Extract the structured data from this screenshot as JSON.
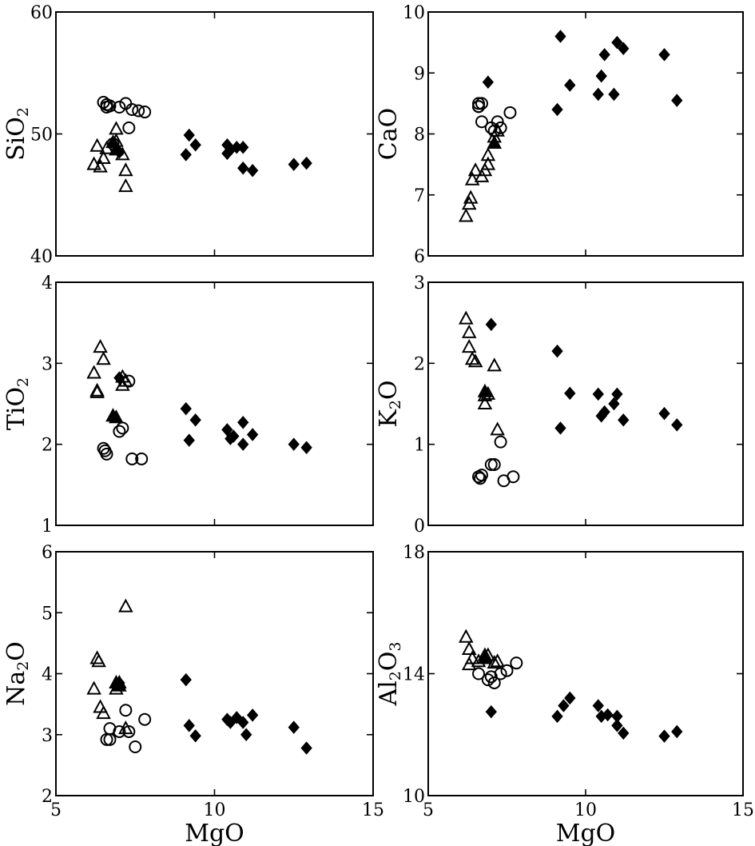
{
  "chart_data": [
    {
      "type": "scatter",
      "ylabel_parts": [
        [
          "Si",
          false
        ],
        [
          "O",
          false
        ],
        [
          "2",
          true
        ]
      ],
      "xlabel": "",
      "xlim": [
        5,
        15
      ],
      "ylim": [
        40,
        60
      ],
      "xticks": [
        5,
        10,
        15
      ],
      "xtick_labels": [
        "",
        "",
        ""
      ],
      "yticks": [
        40,
        50,
        60
      ],
      "ytick_labels": [
        "40",
        "50",
        "60"
      ],
      "series": [
        {
          "marker": "triangle-open",
          "points": [
            [
              6.2,
              47.5
            ],
            [
              6.3,
              49
            ],
            [
              6.4,
              47.3
            ],
            [
              6.5,
              48
            ],
            [
              6.6,
              48.8
            ],
            [
              6.9,
              50.4
            ],
            [
              7.1,
              48.3
            ],
            [
              7.2,
              47
            ],
            [
              7.2,
              45.7
            ],
            [
              6.9,
              49.4
            ]
          ]
        },
        {
          "marker": "triangle-filled",
          "points": [
            [
              6.8,
              49.3
            ],
            [
              6.9,
              48.7
            ]
          ]
        },
        {
          "marker": "circle-open",
          "points": [
            [
              6.5,
              52.6
            ],
            [
              6.6,
              52.4
            ],
            [
              6.6,
              52.2
            ],
            [
              6.7,
              52.3
            ],
            [
              7,
              52.2
            ],
            [
              7.2,
              52.5
            ],
            [
              7.3,
              50.5
            ],
            [
              7.4,
              52
            ],
            [
              7.6,
              51.9
            ],
            [
              7.8,
              51.8
            ],
            [
              6.8,
              49.2
            ]
          ]
        },
        {
          "marker": "diamond-filled",
          "points": [
            [
              7,
              48.5
            ],
            [
              9.1,
              48.3
            ],
            [
              9.2,
              49.9
            ],
            [
              9.4,
              49.1
            ],
            [
              10.4,
              48.4
            ],
            [
              10.4,
              49.1
            ],
            [
              10.5,
              48.7
            ],
            [
              10.7,
              48.9
            ],
            [
              10.9,
              48.9
            ],
            [
              10.9,
              47.2
            ],
            [
              11.2,
              47
            ],
            [
              12.5,
              47.5
            ],
            [
              12.9,
              47.6
            ]
          ]
        }
      ]
    },
    {
      "type": "scatter",
      "ylabel_parts": [
        [
          "Ca",
          false
        ],
        [
          "O",
          false
        ]
      ],
      "xlabel": "",
      "xlim": [
        5,
        15
      ],
      "ylim": [
        6,
        10
      ],
      "xticks": [
        5,
        10,
        15
      ],
      "xtick_labels": [
        "",
        "",
        ""
      ],
      "yticks": [
        6,
        7,
        8,
        9,
        10
      ],
      "ytick_labels": [
        "6",
        "7",
        "8",
        "9",
        "10"
      ],
      "series": [
        {
          "marker": "triangle-open",
          "points": [
            [
              6.2,
              6.65
            ],
            [
              6.3,
              6.85
            ],
            [
              6.35,
              6.95
            ],
            [
              6.4,
              7.25
            ],
            [
              6.5,
              7.4
            ],
            [
              6.7,
              7.3
            ],
            [
              6.8,
              7.4
            ],
            [
              6.9,
              7.5
            ],
            [
              6.9,
              7.65
            ],
            [
              7.1,
              7.95
            ],
            [
              7.2,
              8.05
            ]
          ]
        },
        {
          "marker": "triangle-filled",
          "points": [
            [
              7.1,
              7.85
            ]
          ]
        },
        {
          "marker": "circle-open",
          "points": [
            [
              6.6,
              8.45
            ],
            [
              6.6,
              8.5
            ],
            [
              6.7,
              8.5
            ],
            [
              6.7,
              8.2
            ],
            [
              7,
              8.1
            ],
            [
              7.1,
              8.05
            ],
            [
              7.2,
              8.2
            ],
            [
              7.3,
              8.1
            ],
            [
              7.6,
              8.35
            ],
            [
              6.6,
              8.45
            ]
          ]
        },
        {
          "marker": "diamond-filled",
          "points": [
            [
              6.9,
              8.85
            ],
            [
              9.1,
              8.4
            ],
            [
              9.2,
              9.6
            ],
            [
              9.5,
              8.8
            ],
            [
              10.4,
              8.65
            ],
            [
              10.5,
              8.95
            ],
            [
              10.6,
              9.3
            ],
            [
              10.9,
              8.65
            ],
            [
              11,
              9.5
            ],
            [
              11.2,
              9.4
            ],
            [
              12.5,
              9.3
            ],
            [
              12.9,
              8.55
            ]
          ]
        }
      ]
    },
    {
      "type": "scatter",
      "ylabel_parts": [
        [
          "Ti",
          false
        ],
        [
          "O",
          false
        ],
        [
          "2",
          true
        ]
      ],
      "xlabel": "",
      "xlim": [
        5,
        15
      ],
      "ylim": [
        1,
        4
      ],
      "xticks": [
        5,
        10,
        15
      ],
      "xtick_labels": [
        "",
        "",
        ""
      ],
      "yticks": [
        1,
        2,
        3,
        4
      ],
      "ytick_labels": [
        "1",
        "2",
        "3",
        "4"
      ],
      "series": [
        {
          "marker": "triangle-open",
          "points": [
            [
              6.2,
              2.88
            ],
            [
              6.3,
              2.66
            ],
            [
              6.3,
              2.64
            ],
            [
              6.4,
              3.2
            ],
            [
              6.5,
              3.05
            ],
            [
              7.1,
              2.83
            ],
            [
              7.1,
              2.73
            ],
            [
              7.2,
              2.78
            ]
          ]
        },
        {
          "marker": "triangle-filled",
          "points": [
            [
              6.8,
              2.35
            ],
            [
              6.9,
              2.33
            ]
          ]
        },
        {
          "marker": "circle-open",
          "points": [
            [
              6.5,
              1.95
            ],
            [
              6.55,
              1.92
            ],
            [
              6.6,
              1.88
            ],
            [
              7,
              2.16
            ],
            [
              7.1,
              2.2
            ],
            [
              7.3,
              2.78
            ],
            [
              7.4,
              1.82
            ],
            [
              7.7,
              1.82
            ]
          ]
        },
        {
          "marker": "diamond-filled",
          "points": [
            [
              7,
              2.82
            ],
            [
              9.1,
              2.44
            ],
            [
              9.2,
              2.05
            ],
            [
              9.4,
              2.3
            ],
            [
              10.4,
              2.18
            ],
            [
              10.5,
              2.07
            ],
            [
              10.6,
              2.1
            ],
            [
              10.9,
              2.27
            ],
            [
              10.9,
              2.0
            ],
            [
              11.2,
              2.12
            ],
            [
              12.5,
              2.0
            ],
            [
              12.9,
              1.96
            ]
          ]
        }
      ]
    },
    {
      "type": "scatter",
      "ylabel_parts": [
        [
          "K",
          false
        ],
        [
          "2",
          true
        ],
        [
          "O",
          false
        ]
      ],
      "xlabel": "",
      "xlim": [
        5,
        15
      ],
      "ylim": [
        0,
        3
      ],
      "xticks": [
        5,
        10,
        15
      ],
      "xtick_labels": [
        "",
        "",
        ""
      ],
      "yticks": [
        0,
        1,
        2,
        3
      ],
      "ytick_labels": [
        "0",
        "1",
        "2",
        "3"
      ],
      "series": [
        {
          "marker": "triangle-open",
          "points": [
            [
              6.2,
              2.55
            ],
            [
              6.3,
              2.38
            ],
            [
              6.3,
              2.2
            ],
            [
              6.4,
              2.05
            ],
            [
              6.5,
              2.02
            ],
            [
              6.8,
              1.6
            ],
            [
              6.8,
              1.5
            ],
            [
              6.9,
              1.62
            ],
            [
              7.1,
              1.97
            ],
            [
              7.2,
              1.18
            ]
          ]
        },
        {
          "marker": "triangle-filled",
          "points": [
            [
              6.8,
              1.65
            ]
          ]
        },
        {
          "marker": "circle-open",
          "points": [
            [
              6.6,
              0.6
            ],
            [
              6.7,
              0.62
            ],
            [
              6.65,
              0.58
            ],
            [
              7,
              0.75
            ],
            [
              7.1,
              0.75
            ],
            [
              7.3,
              1.03
            ],
            [
              7.4,
              0.55
            ],
            [
              7.7,
              0.6
            ]
          ]
        },
        {
          "marker": "diamond-filled",
          "points": [
            [
              7,
              2.48
            ],
            [
              9.1,
              2.15
            ],
            [
              9.2,
              1.2
            ],
            [
              9.5,
              1.63
            ],
            [
              10.4,
              1.62
            ],
            [
              10.5,
              1.35
            ],
            [
              10.6,
              1.4
            ],
            [
              10.9,
              1.5
            ],
            [
              11,
              1.62
            ],
            [
              11.2,
              1.3
            ],
            [
              12.5,
              1.38
            ],
            [
              12.9,
              1.24
            ]
          ]
        }
      ]
    },
    {
      "type": "scatter",
      "ylabel_parts": [
        [
          "Na",
          false
        ],
        [
          "2",
          true
        ],
        [
          "O",
          false
        ]
      ],
      "xlabel": "MgO",
      "xlim": [
        5,
        15
      ],
      "ylim": [
        2,
        6
      ],
      "xticks": [
        5,
        10,
        15
      ],
      "xtick_labels": [
        "5",
        "10",
        "15"
      ],
      "yticks": [
        2,
        3,
        4,
        5,
        6
      ],
      "ytick_labels": [
        "2",
        "3",
        "4",
        "5",
        "6"
      ],
      "series": [
        {
          "marker": "triangle-open",
          "points": [
            [
              6.2,
              3.75
            ],
            [
              6.3,
              4.25
            ],
            [
              6.35,
              4.2
            ],
            [
              6.4,
              3.45
            ],
            [
              6.5,
              3.35
            ],
            [
              6.9,
              3.75
            ],
            [
              7,
              3.85
            ],
            [
              7.2,
              5.1
            ],
            [
              7.2,
              3.1
            ]
          ]
        },
        {
          "marker": "triangle-filled",
          "points": [
            [
              6.9,
              3.85
            ],
            [
              7,
              3.8
            ]
          ]
        },
        {
          "marker": "circle-open",
          "points": [
            [
              6.6,
              2.92
            ],
            [
              6.7,
              2.92
            ],
            [
              6.7,
              3.1
            ],
            [
              7,
              3.05
            ],
            [
              7.2,
              3.4
            ],
            [
              7.3,
              3.05
            ],
            [
              7.5,
              2.8
            ],
            [
              7.8,
              3.25
            ]
          ]
        },
        {
          "marker": "diamond-filled",
          "points": [
            [
              7,
              3.85
            ],
            [
              9.1,
              3.9
            ],
            [
              9.2,
              3.15
            ],
            [
              9.4,
              2.98
            ],
            [
              10.4,
              3.25
            ],
            [
              10.5,
              3.2
            ],
            [
              10.7,
              3.28
            ],
            [
              10.9,
              3.2
            ],
            [
              11,
              3.0
            ],
            [
              11.2,
              3.32
            ],
            [
              12.5,
              3.12
            ],
            [
              12.9,
              2.78
            ]
          ]
        }
      ]
    },
    {
      "type": "scatter",
      "ylabel_parts": [
        [
          "Al",
          false
        ],
        [
          "2",
          true
        ],
        [
          "O",
          false
        ],
        [
          "3",
          true
        ]
      ],
      "xlabel": "MgO",
      "xlim": [
        5,
        15
      ],
      "ylim": [
        10,
        18
      ],
      "xticks": [
        5,
        10,
        15
      ],
      "xtick_labels": [
        "5",
        "10",
        "15"
      ],
      "yticks": [
        10,
        14,
        18
      ],
      "ytick_labels": [
        "10",
        "14",
        "18"
      ],
      "series": [
        {
          "marker": "triangle-open",
          "points": [
            [
              6.2,
              15.2
            ],
            [
              6.3,
              14.8
            ],
            [
              6.4,
              14.5
            ],
            [
              6.3,
              14.3
            ],
            [
              6.6,
              14.4
            ],
            [
              6.8,
              14.6
            ],
            [
              6.9,
              14.6
            ],
            [
              7.1,
              14.35
            ],
            [
              7.2,
              14.4
            ]
          ]
        },
        {
          "marker": "triangle-filled",
          "points": [
            [
              6.8,
              14.5
            ]
          ]
        },
        {
          "marker": "circle-open",
          "points": [
            [
              6.6,
              14.0
            ],
            [
              6.9,
              13.8
            ],
            [
              7,
              13.9
            ],
            [
              7.1,
              13.7
            ],
            [
              7.3,
              14.0
            ],
            [
              7.5,
              14.1
            ],
            [
              7.8,
              14.35
            ]
          ]
        },
        {
          "marker": "diamond-filled",
          "points": [
            [
              7,
              12.75
            ],
            [
              9.1,
              12.6
            ],
            [
              9.3,
              12.95
            ],
            [
              9.5,
              13.2
            ],
            [
              10.4,
              12.95
            ],
            [
              10.5,
              12.6
            ],
            [
              10.7,
              12.65
            ],
            [
              11,
              12.6
            ],
            [
              11,
              12.3
            ],
            [
              11.2,
              12.05
            ],
            [
              12.5,
              11.95
            ],
            [
              12.9,
              12.1
            ]
          ]
        }
      ]
    }
  ]
}
